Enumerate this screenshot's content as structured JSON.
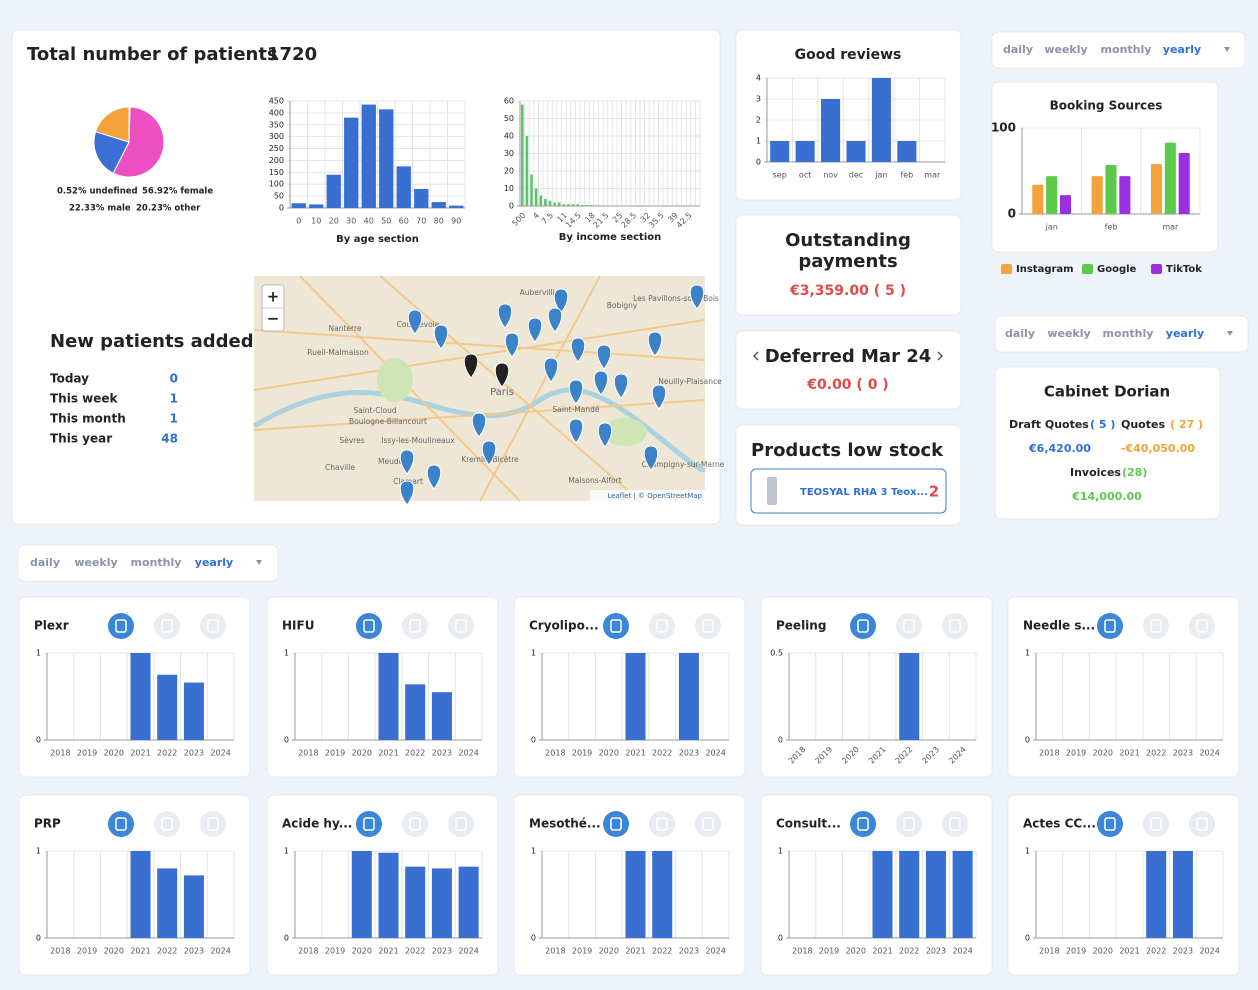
{
  "patients": {
    "title": "Total number of patients",
    "total": 1720,
    "gender_pie": {
      "type": "pie",
      "values": [
        0.52,
        56.92,
        22.33,
        20.23
      ],
      "value_labels": [
        "0.52% undefined",
        "56.92% female",
        "22.33% male",
        "20.23% other"
      ],
      "colors": [
        "#47b36b",
        "#ec4fc0",
        "#3b6fd6",
        "#f2a33a"
      ]
    },
    "age_chart": {
      "type": "bar",
      "xlabel": "By age section",
      "categories": [
        0,
        10,
        20,
        30,
        40,
        50,
        60,
        70,
        80,
        90
      ],
      "values": [
        20,
        15,
        140,
        380,
        435,
        415,
        175,
        80,
        25,
        10
      ],
      "ylim": [
        0,
        450
      ],
      "yticks": [
        0,
        50,
        100,
        150,
        200,
        250,
        300,
        350,
        400,
        450
      ],
      "color": "#3a6fd2"
    },
    "income_chart": {
      "type": "bar",
      "xlabel": "By income section",
      "categories": [
        "500",
        null,
        null,
        "4",
        null,
        null,
        "7.5",
        null,
        null,
        "11",
        null,
        null,
        "14.5",
        null,
        null,
        "18",
        null,
        null,
        "21.5",
        null,
        null,
        "25",
        null,
        null,
        "28.5",
        null,
        null,
        "32",
        null,
        null,
        "35.5",
        null,
        null,
        "39",
        null,
        null,
        "42.5",
        null,
        null
      ],
      "values": [
        58,
        40,
        18,
        10,
        6,
        4,
        3,
        2,
        2,
        1,
        1,
        1,
        1,
        0.5,
        0.5,
        0.5,
        0.3,
        0.3,
        0.3,
        0.2,
        0.2,
        0.2,
        0,
        0,
        0,
        0,
        0,
        0,
        0,
        0,
        0,
        0,
        0,
        0,
        0,
        0,
        0,
        0,
        0
      ],
      "ylim": [
        0,
        60
      ],
      "yticks": [
        0,
        10,
        20,
        30,
        40,
        50,
        60
      ],
      "color": "#5cc26b"
    },
    "map": {
      "zoom_in": "+",
      "zoom_out": "−",
      "places": [
        "Aubervilliers",
        "Bobigny",
        "Les Pavillons-sous-Bois",
        "Nanterre",
        "Rueil-Malmaison",
        "Courbevoie",
        "Paris",
        "Saint-Cloud",
        "Boulogne-Billancourt",
        "Issy-les-Moulineaux",
        "Sèvres",
        "Meudon",
        "Chaville",
        "Clamart",
        "Saint-Mandé",
        "Kremlin-Bicêtre",
        "Maisons-Alfort",
        "Neuilly-Plaisance",
        "Champigny-sur-Marne"
      ],
      "attribution": "Leaflet | © OpenStreetMap"
    }
  },
  "new_patients": {
    "title": "New patients added",
    "rows": [
      {
        "label": "Today",
        "value": 0
      },
      {
        "label": "This week",
        "value": 1
      },
      {
        "label": "This month",
        "value": 1
      },
      {
        "label": "This year",
        "value": 48
      }
    ]
  },
  "good_reviews": {
    "type": "bar",
    "title": "Good reviews",
    "categories": [
      "sep",
      "oct",
      "nov",
      "dec",
      "jan",
      "feb",
      "mar"
    ],
    "values": [
      1,
      1,
      3,
      1,
      4,
      1,
      0
    ],
    "ylim": [
      0,
      4
    ],
    "yticks": [
      0,
      1,
      2,
      3,
      4
    ],
    "color": "#3a6fd2"
  },
  "outstanding": {
    "title": "Outstanding payments",
    "amount": "€3,359.00 ( 5 )"
  },
  "deferred": {
    "title": "Deferred Mar 24",
    "amount": "€0.00 ( 0 )"
  },
  "low_stock": {
    "title": "Products  low stock",
    "items": [
      {
        "name": "TEOSYAL RHA 3 Teox...",
        "count": 2
      }
    ]
  },
  "period_tabs": [
    "daily",
    "weekly",
    "monthly",
    "yearly"
  ],
  "booking_sources": {
    "type": "bar",
    "title": "Booking Sources",
    "categories": [
      "jan",
      "feb",
      "mar"
    ],
    "series": [
      {
        "name": "Instagram",
        "color": "#f2a33a",
        "values": [
          34,
          44,
          58
        ]
      },
      {
        "name": "Google",
        "color": "#5cc94a",
        "values": [
          44,
          57,
          83
        ]
      },
      {
        "name": "TikTok",
        "color": "#9b30e0",
        "values": [
          22,
          44,
          71
        ]
      }
    ],
    "ylim": [
      0,
      100
    ],
    "yticks": [
      0,
      100
    ]
  },
  "cabinet": {
    "title": "Cabinet Dorian",
    "draft_quotes_label": "Draft Quotes",
    "draft_quotes_count": "( 5 )",
    "quotes_label": "Quotes",
    "quotes_count": "( 27 )",
    "draft_quotes_amount": "€6,420.00",
    "quotes_amount": "-€40,050.00",
    "invoices_label": "Invoices",
    "invoices_count": "(28)",
    "invoices_amount": "€14,000.00"
  },
  "treatments": [
    {
      "type": "bar",
      "title": "Plexr",
      "categories": [
        2018,
        2019,
        2020,
        2021,
        2022,
        2023,
        2024
      ],
      "values": [
        0,
        0,
        0,
        1,
        0.75,
        0.66,
        0
      ],
      "ylim": [
        0,
        1
      ],
      "yticks": [
        0,
        1
      ],
      "color": "#3a6fd2"
    },
    {
      "type": "bar",
      "title": "HIFU",
      "categories": [
        2018,
        2019,
        2020,
        2021,
        2022,
        2023,
        2024
      ],
      "values": [
        0,
        0,
        0,
        1,
        0.64,
        0.55,
        0
      ],
      "ylim": [
        0,
        1
      ],
      "yticks": [
        0,
        1
      ],
      "color": "#3a6fd2"
    },
    {
      "type": "bar",
      "title": "Cryolipo...",
      "categories": [
        2018,
        2019,
        2020,
        2021,
        2022,
        2023,
        2024
      ],
      "values": [
        0,
        0,
        0,
        1,
        0,
        1,
        0
      ],
      "ylim": [
        0,
        1
      ],
      "yticks": [
        0,
        1
      ],
      "color": "#3a6fd2"
    },
    {
      "type": "bar",
      "title": "Peeling",
      "categories": [
        2018,
        2019,
        2020,
        2021,
        2022,
        2023,
        2024
      ],
      "values": [
        0,
        0,
        0,
        0,
        0.5,
        0,
        0
      ],
      "ylim": [
        0,
        0.5
      ],
      "yticks": [
        0,
        0.5
      ],
      "color": "#3a6fd2"
    },
    {
      "type": "bar",
      "title": "Needle s...",
      "categories": [
        2018,
        2019,
        2020,
        2021,
        2022,
        2023,
        2024
      ],
      "values": [
        0,
        0,
        0,
        0,
        0,
        0,
        0
      ],
      "ylim": [
        0,
        1
      ],
      "yticks": [
        0,
        1
      ],
      "color": "#3a6fd2"
    },
    {
      "type": "bar",
      "title": "PRP",
      "categories": [
        2018,
        2019,
        2020,
        2021,
        2022,
        2023,
        2024
      ],
      "values": [
        0,
        0,
        0,
        1,
        0.8,
        0.72,
        0
      ],
      "ylim": [
        0,
        1
      ],
      "yticks": [
        0,
        1
      ],
      "color": "#3a6fd2"
    },
    {
      "type": "bar",
      "title": "Acide hy...",
      "categories": [
        2018,
        2019,
        2020,
        2021,
        2022,
        2023,
        2024
      ],
      "values": [
        0,
        0,
        1,
        0.98,
        0.82,
        0.8,
        0.82
      ],
      "ylim": [
        0,
        1
      ],
      "yticks": [
        0,
        1
      ],
      "color": "#3a6fd2"
    },
    {
      "type": "bar",
      "title": "Mesothé...",
      "categories": [
        2018,
        2019,
        2020,
        2021,
        2022,
        2023,
        2024
      ],
      "values": [
        0,
        0,
        0,
        1,
        1,
        0,
        0
      ],
      "ylim": [
        0,
        1
      ],
      "yticks": [
        0,
        1
      ],
      "color": "#3a6fd2"
    },
    {
      "type": "bar",
      "title": "Consult...",
      "categories": [
        2018,
        2019,
        2020,
        2021,
        2022,
        2023,
        2024
      ],
      "values": [
        0,
        0,
        0,
        1,
        1,
        1,
        1
      ],
      "ylim": [
        0,
        1
      ],
      "yticks": [
        0,
        1
      ],
      "color": "#3a6fd2"
    },
    {
      "type": "bar",
      "title": "Actes CC...",
      "categories": [
        2018,
        2019,
        2020,
        2021,
        2022,
        2023,
        2024
      ],
      "values": [
        0,
        0,
        0,
        0,
        1,
        1,
        0
      ],
      "ylim": [
        0,
        1
      ],
      "yticks": [
        0,
        1
      ],
      "color": "#3a6fd2"
    }
  ]
}
